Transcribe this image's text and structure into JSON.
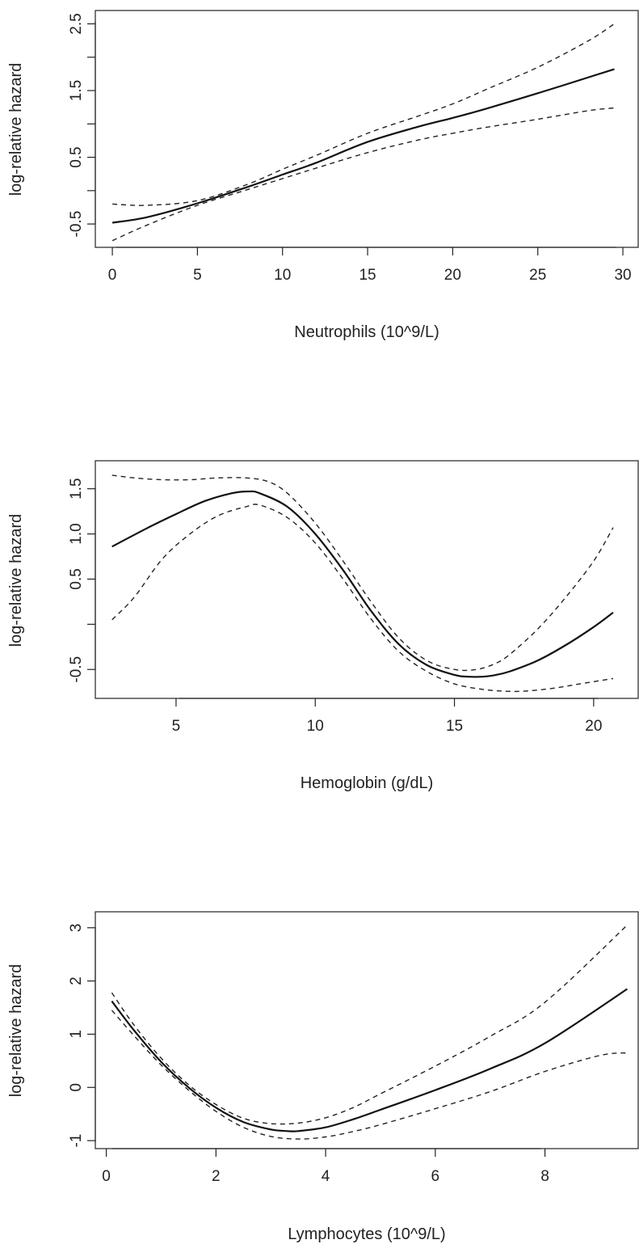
{
  "chart_data": [
    {
      "type": "line",
      "title": "",
      "xlabel": "Neutrophils (10^9/L)",
      "ylabel": "log-relative hazard",
      "xlim": [
        -1.0,
        30.9
      ],
      "ylim": [
        -0.85,
        2.7
      ],
      "x_ticks": [
        0,
        5,
        10,
        15,
        20,
        25,
        30
      ],
      "y_ticks": [
        -0.5,
        0,
        0.5,
        1,
        1.5,
        2,
        2.5
      ],
      "y_tick_labels": [
        "-0.5",
        "",
        "0.5",
        "",
        "1.5",
        "",
        "2.5"
      ],
      "x_tick_labels": [
        "0",
        "5",
        "10",
        "15",
        "20",
        "25",
        "30"
      ],
      "grid": false,
      "series": [
        {
          "role": "estimate",
          "x": [
            0,
            2,
            5,
            8,
            10,
            12,
            15,
            18,
            20,
            22,
            25,
            28,
            29.5
          ],
          "y": [
            -0.48,
            -0.4,
            -0.19,
            0.06,
            0.24,
            0.42,
            0.73,
            0.96,
            1.09,
            1.23,
            1.46,
            1.7,
            1.82
          ]
        },
        {
          "role": "upper",
          "x": [
            0,
            2,
            5,
            8,
            10,
            12,
            15,
            18,
            20,
            22,
            25,
            28,
            29.5
          ],
          "y": [
            -0.2,
            -0.22,
            -0.15,
            0.1,
            0.32,
            0.53,
            0.86,
            1.12,
            1.3,
            1.52,
            1.85,
            2.25,
            2.5
          ]
        },
        {
          "role": "lower",
          "x": [
            0,
            2,
            5,
            8,
            10,
            12,
            15,
            18,
            20,
            22,
            25,
            28,
            29.5
          ],
          "y": [
            -0.75,
            -0.52,
            -0.22,
            0.02,
            0.18,
            0.34,
            0.57,
            0.76,
            0.86,
            0.95,
            1.07,
            1.2,
            1.24
          ]
        }
      ]
    },
    {
      "type": "line",
      "title": "",
      "xlabel": "Hemoglobin (g/dL)",
      "ylabel": "log-relative hazard",
      "xlim": [
        2.1,
        21.6
      ],
      "ylim": [
        -0.82,
        1.81
      ],
      "x_ticks": [
        5,
        10,
        15,
        20
      ],
      "y_ticks": [
        -0.5,
        0,
        0.5,
        1,
        1.5
      ],
      "y_tick_labels": [
        "-0.5",
        "",
        "0.5",
        "1.0",
        "1.5"
      ],
      "x_tick_labels": [
        "5",
        "10",
        "15",
        "20"
      ],
      "grid": false,
      "series": [
        {
          "role": "estimate",
          "x": [
            2.7,
            4,
            5,
            6,
            7,
            7.6,
            8,
            9,
            10,
            11,
            12,
            13,
            14,
            15,
            15.5,
            16,
            16.5,
            17,
            18,
            19,
            20,
            20.7
          ],
          "y": [
            0.86,
            1.07,
            1.22,
            1.36,
            1.45,
            1.47,
            1.45,
            1.3,
            1.0,
            0.6,
            0.15,
            -0.22,
            -0.45,
            -0.56,
            -0.58,
            -0.58,
            -0.56,
            -0.52,
            -0.4,
            -0.23,
            -0.03,
            0.13
          ]
        },
        {
          "role": "upper",
          "x": [
            2.7,
            3.5,
            4.5,
            5.5,
            6.5,
            7.5,
            8.3,
            9,
            10,
            11,
            12,
            13,
            14,
            15,
            15.8,
            16.5,
            17,
            18,
            19,
            20,
            20.7
          ],
          "y": [
            1.65,
            1.62,
            1.6,
            1.6,
            1.62,
            1.62,
            1.58,
            1.45,
            1.12,
            0.7,
            0.25,
            -0.15,
            -0.4,
            -0.5,
            -0.5,
            -0.43,
            -0.33,
            -0.05,
            0.3,
            0.7,
            1.07
          ]
        },
        {
          "role": "lower",
          "x": [
            2.7,
            3.5,
            4.5,
            5.5,
            6.5,
            7.5,
            8,
            9,
            10,
            11,
            12,
            13,
            14,
            15,
            16,
            16.8,
            17.5,
            18.5,
            19.5,
            20.7
          ],
          "y": [
            0.05,
            0.3,
            0.72,
            1.0,
            1.2,
            1.3,
            1.32,
            1.18,
            0.9,
            0.5,
            0.06,
            -0.3,
            -0.52,
            -0.66,
            -0.72,
            -0.74,
            -0.74,
            -0.71,
            -0.66,
            -0.6
          ]
        }
      ]
    },
    {
      "type": "line",
      "title": "",
      "xlabel": "Lymphocytes (10^9/L)",
      "ylabel": "log-relative hazard",
      "xlim": [
        -0.2,
        9.7
      ],
      "ylim": [
        -1.15,
        3.3
      ],
      "x_ticks": [
        0,
        2,
        4,
        6,
        8
      ],
      "y_ticks": [
        -1,
        0,
        1,
        2,
        3
      ],
      "y_tick_labels": [
        "-1",
        "0",
        "1",
        "2",
        "3"
      ],
      "x_tick_labels": [
        "0",
        "2",
        "4",
        "6",
        "8"
      ],
      "grid": false,
      "series": [
        {
          "role": "estimate",
          "x": [
            0.1,
            0.5,
            1.0,
            1.5,
            2.0,
            2.5,
            3.0,
            3.3,
            3.5,
            4.0,
            4.5,
            5.0,
            6.0,
            7.0,
            8.0,
            9.5
          ],
          "y": [
            1.62,
            1.08,
            0.48,
            0.0,
            -0.38,
            -0.65,
            -0.79,
            -0.82,
            -0.82,
            -0.75,
            -0.6,
            -0.42,
            -0.05,
            0.35,
            0.83,
            1.85
          ]
        },
        {
          "role": "upper",
          "x": [
            0.1,
            0.5,
            1.0,
            1.5,
            2.0,
            2.5,
            3.0,
            3.5,
            4.0,
            4.5,
            5.0,
            6.0,
            7.0,
            8.0,
            9.5
          ],
          "y": [
            1.78,
            1.18,
            0.55,
            0.05,
            -0.32,
            -0.58,
            -0.68,
            -0.67,
            -0.57,
            -0.38,
            -0.12,
            0.4,
            0.96,
            1.6,
            3.05
          ]
        },
        {
          "role": "lower",
          "x": [
            0.1,
            0.5,
            1.0,
            1.5,
            2.0,
            2.5,
            3.0,
            3.5,
            4.0,
            4.5,
            5.0,
            6.0,
            7.0,
            8.0,
            9.0,
            9.5
          ],
          "y": [
            1.45,
            0.98,
            0.42,
            -0.05,
            -0.45,
            -0.75,
            -0.92,
            -0.97,
            -0.93,
            -0.83,
            -0.7,
            -0.4,
            -0.08,
            0.3,
            0.6,
            0.65
          ]
        }
      ]
    }
  ]
}
